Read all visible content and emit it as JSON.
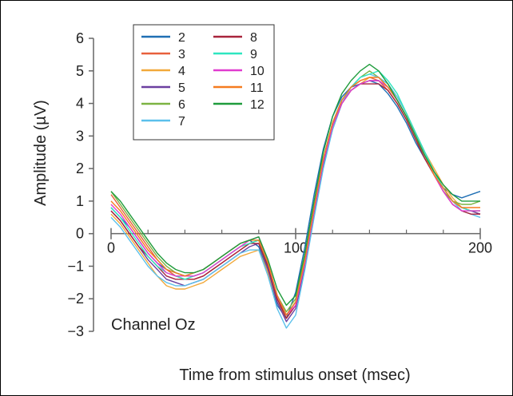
{
  "chart_data": {
    "type": "line",
    "xlabel": "Time from stimulus onset (msec)",
    "ylabel": "Amplitude (µV)",
    "annotation": "Channel Oz",
    "xlim": [
      0,
      200
    ],
    "ylim": [
      -3,
      6
    ],
    "x_ticks": [
      0,
      100,
      200
    ],
    "x_minor_ticks": [
      20,
      40,
      60,
      80,
      120,
      140,
      160,
      180
    ],
    "y_ticks": [
      -3,
      -2,
      -1,
      0,
      1,
      2,
      3,
      4,
      5,
      6
    ],
    "grid": false,
    "legend_position": "top-left",
    "x": [
      0,
      5,
      10,
      15,
      20,
      25,
      30,
      35,
      40,
      45,
      50,
      55,
      60,
      65,
      70,
      75,
      80,
      85,
      90,
      95,
      100,
      105,
      110,
      115,
      120,
      125,
      130,
      135,
      140,
      145,
      150,
      155,
      160,
      165,
      170,
      175,
      180,
      185,
      190,
      195,
      200
    ],
    "series": [
      {
        "name": "2",
        "color": "#1f6fb4",
        "values": [
          0.8,
          0.5,
          0.2,
          -0.2,
          -0.6,
          -0.9,
          -1.1,
          -1.2,
          -1.3,
          -1.2,
          -1.1,
          -0.9,
          -0.7,
          -0.5,
          -0.3,
          -0.2,
          -0.4,
          -1.2,
          -2.2,
          -2.6,
          -1.8,
          -0.4,
          1.2,
          2.6,
          3.6,
          4.2,
          4.5,
          4.6,
          4.7,
          4.6,
          4.3,
          3.9,
          3.4,
          2.8,
          2.3,
          1.8,
          1.4,
          1.2,
          1.1,
          1.2,
          1.3
        ]
      },
      {
        "name": "3",
        "color": "#e8603c",
        "values": [
          1.2,
          0.8,
          0.4,
          0.0,
          -0.4,
          -0.8,
          -1.1,
          -1.3,
          -1.4,
          -1.4,
          -1.3,
          -1.1,
          -0.9,
          -0.7,
          -0.5,
          -0.3,
          -0.2,
          -1.0,
          -2.0,
          -2.5,
          -2.1,
          -0.8,
          0.8,
          2.3,
          3.4,
          4.1,
          4.5,
          4.7,
          4.8,
          4.7,
          4.4,
          4.0,
          3.5,
          2.9,
          2.4,
          1.9,
          1.4,
          1.0,
          0.8,
          0.7,
          0.7
        ]
      },
      {
        "name": "4",
        "color": "#f2a93b",
        "values": [
          0.6,
          0.3,
          -0.1,
          -0.5,
          -0.9,
          -1.3,
          -1.6,
          -1.7,
          -1.7,
          -1.6,
          -1.5,
          -1.3,
          -1.1,
          -0.9,
          -0.7,
          -0.6,
          -0.5,
          -1.2,
          -2.1,
          -2.6,
          -2.2,
          -0.9,
          0.7,
          2.2,
          3.3,
          4.0,
          4.4,
          4.6,
          4.8,
          4.8,
          4.6,
          4.2,
          3.7,
          3.1,
          2.5,
          2.0,
          1.5,
          1.1,
          0.8,
          0.7,
          0.6
        ]
      },
      {
        "name": "5",
        "color": "#6b3fa0",
        "values": [
          0.7,
          0.4,
          0.0,
          -0.4,
          -0.8,
          -1.1,
          -1.4,
          -1.5,
          -1.6,
          -1.5,
          -1.4,
          -1.2,
          -1.0,
          -0.8,
          -0.6,
          -0.4,
          -0.3,
          -1.1,
          -2.1,
          -2.7,
          -2.3,
          -1.0,
          0.6,
          2.1,
          3.2,
          4.0,
          4.4,
          4.6,
          4.7,
          4.7,
          4.5,
          4.1,
          3.6,
          3.0,
          2.4,
          1.9,
          1.4,
          1.0,
          0.8,
          0.7,
          0.6
        ]
      },
      {
        "name": "6",
        "color": "#7cb342",
        "values": [
          1.3,
          0.9,
          0.5,
          0.1,
          -0.3,
          -0.7,
          -1.0,
          -1.2,
          -1.3,
          -1.3,
          -1.2,
          -1.0,
          -0.8,
          -0.6,
          -0.4,
          -0.3,
          -0.2,
          -1.0,
          -1.9,
          -2.4,
          -2.0,
          -0.7,
          0.8,
          2.3,
          3.4,
          4.1,
          4.5,
          4.8,
          5.0,
          4.8,
          4.5,
          4.1,
          3.6,
          3.0,
          2.4,
          1.8,
          1.3,
          1.0,
          0.9,
          0.9,
          1.0
        ]
      },
      {
        "name": "7",
        "color": "#5bc0eb",
        "values": [
          0.5,
          0.2,
          -0.2,
          -0.6,
          -1.0,
          -1.3,
          -1.5,
          -1.6,
          -1.6,
          -1.5,
          -1.4,
          -1.2,
          -1.0,
          -0.8,
          -0.6,
          -0.5,
          -0.5,
          -1.3,
          -2.3,
          -2.9,
          -2.5,
          -1.1,
          0.5,
          2.0,
          3.2,
          4.0,
          4.5,
          4.8,
          4.9,
          4.8,
          4.6,
          4.2,
          3.7,
          3.1,
          2.5,
          1.9,
          1.4,
          1.0,
          0.7,
          0.6,
          0.5
        ]
      },
      {
        "name": "8",
        "color": "#a8243c",
        "values": [
          0.7,
          0.4,
          0.0,
          -0.4,
          -0.7,
          -1.0,
          -1.3,
          -1.4,
          -1.4,
          -1.4,
          -1.3,
          -1.1,
          -0.9,
          -0.7,
          -0.5,
          -0.3,
          -0.3,
          -1.0,
          -2.0,
          -2.6,
          -2.2,
          -0.9,
          0.7,
          2.2,
          3.3,
          4.0,
          4.4,
          4.6,
          4.6,
          4.6,
          4.4,
          4.0,
          3.5,
          2.9,
          2.3,
          1.8,
          1.3,
          0.9,
          0.7,
          0.6,
          0.6
        ]
      },
      {
        "name": "9",
        "color": "#2ee6c0",
        "values": [
          0.8,
          0.5,
          0.1,
          -0.3,
          -0.7,
          -1.0,
          -1.2,
          -1.3,
          -1.4,
          -1.3,
          -1.2,
          -1.0,
          -0.8,
          -0.6,
          -0.4,
          -0.3,
          -0.2,
          -0.9,
          -1.9,
          -2.5,
          -2.1,
          -0.8,
          0.8,
          2.3,
          3.4,
          4.1,
          4.5,
          4.8,
          4.9,
          5.0,
          4.7,
          4.3,
          3.7,
          3.1,
          2.5,
          1.9,
          1.4,
          1.0,
          0.8,
          0.7,
          0.7
        ]
      },
      {
        "name": "10",
        "color": "#e03ccf",
        "values": [
          0.9,
          0.6,
          0.2,
          -0.2,
          -0.6,
          -0.9,
          -1.2,
          -1.3,
          -1.3,
          -1.3,
          -1.2,
          -1.0,
          -0.8,
          -0.6,
          -0.4,
          -0.2,
          -0.1,
          -0.9,
          -1.9,
          -2.5,
          -2.2,
          -0.9,
          0.7,
          2.2,
          3.3,
          4.0,
          4.4,
          4.6,
          4.7,
          4.7,
          4.5,
          4.1,
          3.6,
          3.0,
          2.4,
          1.8,
          1.3,
          0.9,
          0.7,
          0.7,
          0.7
        ]
      },
      {
        "name": "11",
        "color": "#f57c1f",
        "values": [
          1.0,
          0.7,
          0.3,
          -0.1,
          -0.5,
          -0.8,
          -1.1,
          -1.2,
          -1.3,
          -1.2,
          -1.1,
          -0.9,
          -0.7,
          -0.5,
          -0.3,
          -0.2,
          -0.2,
          -0.9,
          -1.9,
          -2.5,
          -2.1,
          -0.8,
          0.8,
          2.3,
          3.4,
          4.1,
          4.5,
          4.7,
          4.8,
          4.8,
          4.5,
          4.1,
          3.6,
          3.0,
          2.4,
          1.8,
          1.4,
          1.0,
          0.8,
          0.8,
          0.8
        ]
      },
      {
        "name": "12",
        "color": "#1f9c3c",
        "values": [
          1.3,
          1.0,
          0.6,
          0.2,
          -0.2,
          -0.6,
          -0.9,
          -1.1,
          -1.2,
          -1.2,
          -1.1,
          -0.9,
          -0.7,
          -0.5,
          -0.3,
          -0.2,
          -0.1,
          -0.8,
          -1.7,
          -2.2,
          -1.9,
          -0.6,
          1.0,
          2.5,
          3.6,
          4.3,
          4.7,
          5.0,
          5.2,
          5.0,
          4.6,
          4.1,
          3.6,
          3.0,
          2.4,
          1.9,
          1.5,
          1.2,
          1.0,
          1.0,
          1.0
        ]
      }
    ]
  }
}
